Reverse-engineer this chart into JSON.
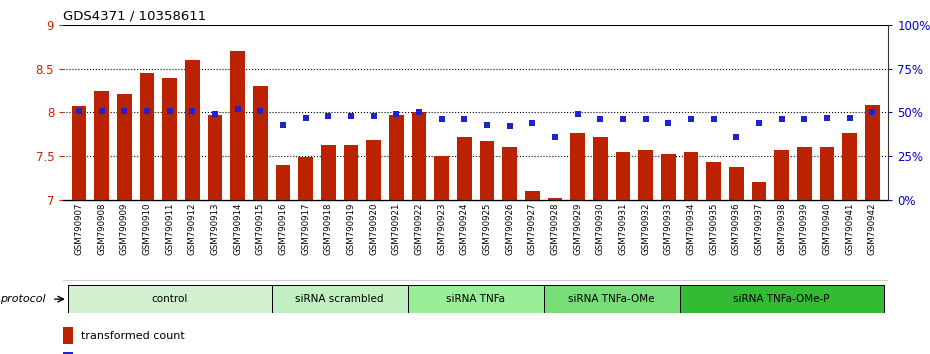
{
  "title": "GDS4371 / 10358611",
  "samples": [
    "GSM790907",
    "GSM790908",
    "GSM790909",
    "GSM790910",
    "GSM790911",
    "GSM790912",
    "GSM790913",
    "GSM790914",
    "GSM790915",
    "GSM790916",
    "GSM790917",
    "GSM790918",
    "GSM790919",
    "GSM790920",
    "GSM790921",
    "GSM790922",
    "GSM790923",
    "GSM790924",
    "GSM790925",
    "GSM790926",
    "GSM790927",
    "GSM790928",
    "GSM790929",
    "GSM790930",
    "GSM790931",
    "GSM790932",
    "GSM790933",
    "GSM790934",
    "GSM790935",
    "GSM790936",
    "GSM790937",
    "GSM790938",
    "GSM790939",
    "GSM790940",
    "GSM790941",
    "GSM790942"
  ],
  "bar_values": [
    8.07,
    8.24,
    8.21,
    8.45,
    8.39,
    8.6,
    7.97,
    8.7,
    8.3,
    7.4,
    7.49,
    7.63,
    7.63,
    7.68,
    7.97,
    8.0,
    7.5,
    7.72,
    7.67,
    7.6,
    7.1,
    7.02,
    7.77,
    7.72,
    7.55,
    7.57,
    7.53,
    7.55,
    7.43,
    7.38,
    7.2,
    7.57,
    7.6,
    7.6,
    7.77,
    8.08
  ],
  "percentile_values": [
    51,
    51,
    51,
    51,
    51,
    51,
    49,
    52,
    51,
    43,
    47,
    48,
    48,
    48,
    49,
    50,
    46,
    46,
    43,
    42,
    44,
    36,
    49,
    46,
    46,
    46,
    44,
    46,
    46,
    36,
    44,
    46,
    46,
    47,
    47,
    50
  ],
  "group_info": [
    {
      "label": "control",
      "start": 0,
      "end": 9,
      "color": "#d0f0d0"
    },
    {
      "label": "siRNA scrambled",
      "start": 9,
      "end": 15,
      "color": "#c0f0c0"
    },
    {
      "label": "siRNA TNFa",
      "start": 15,
      "end": 21,
      "color": "#99ee99"
    },
    {
      "label": "siRNA TNFa-OMe",
      "start": 21,
      "end": 27,
      "color": "#77dd77"
    },
    {
      "label": "siRNA TNFa-OMe-P",
      "start": 27,
      "end": 36,
      "color": "#33bb33"
    }
  ],
  "bar_color": "#bb2200",
  "dot_color": "#2222cc",
  "ylim_left": [
    7,
    9
  ],
  "ylim_right": [
    0,
    100
  ],
  "yticks_left": [
    7,
    7.5,
    8,
    8.5,
    9
  ],
  "ytick_labels_left": [
    "7",
    "7.5",
    "8",
    "8.5",
    "9"
  ],
  "yticks_right": [
    0,
    25,
    50,
    75,
    100
  ],
  "ytick_labels_right": [
    "0%",
    "25%",
    "50%",
    "75%",
    "100%"
  ],
  "dotted_lines": [
    7.5,
    8.0,
    8.5
  ],
  "bar_width": 0.65,
  "xtick_bg": "#d8d8d8"
}
